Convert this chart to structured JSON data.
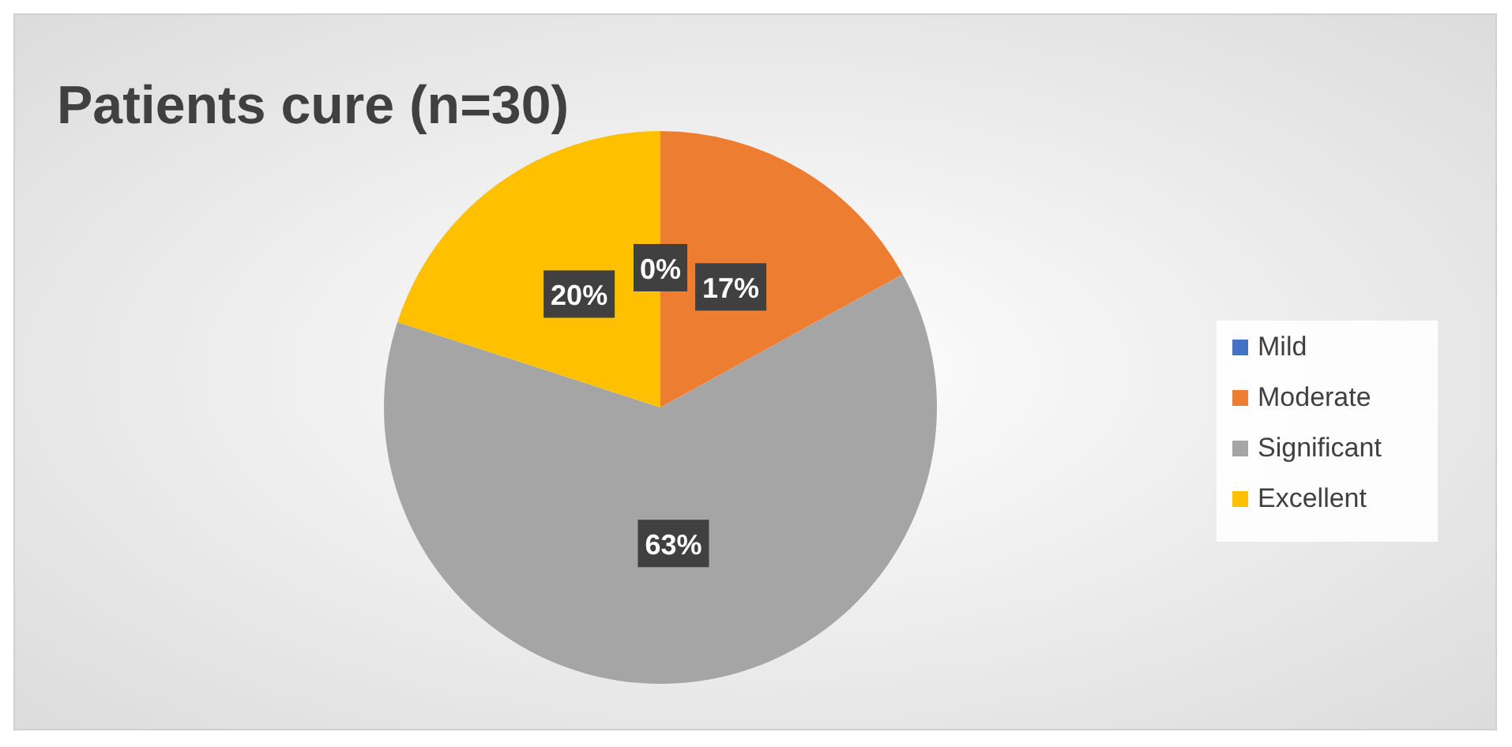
{
  "chart_data": {
    "type": "pie",
    "title": "Patients cure (n=30)",
    "categories": [
      "Mild",
      "Moderate",
      "Significant",
      "Excellent"
    ],
    "values": [
      0,
      17,
      63,
      20
    ],
    "colors": [
      "#4472c4",
      "#ed7d31",
      "#a5a5a5",
      "#ffc000"
    ],
    "value_labels": [
      "0%",
      "17%",
      "63%",
      "20%"
    ],
    "legend": "right"
  }
}
